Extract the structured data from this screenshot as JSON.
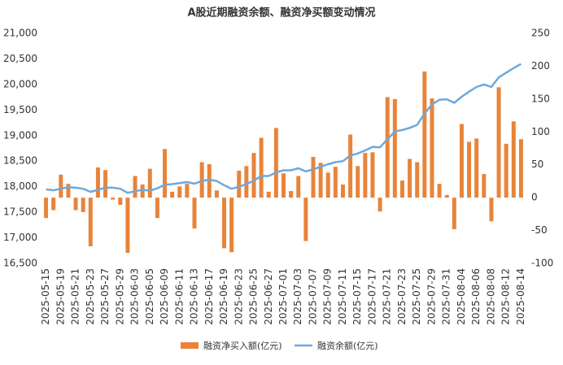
{
  "chart_data": {
    "type": "bar-line",
    "title": "A股近期融资余额、融资净买额变动情况",
    "categories": [
      "2025-05-15",
      null,
      "2025-05-19",
      null,
      "2025-05-21",
      null,
      "2025-05-23",
      null,
      "2025-05-27",
      null,
      "2025-05-29",
      null,
      "2025-06-03",
      null,
      "2025-06-05",
      null,
      "2025-06-09",
      null,
      "2025-06-11",
      null,
      "2025-06-13",
      null,
      "2025-06-17",
      null,
      "2025-06-19",
      null,
      "2025-06-23",
      null,
      "2025-06-25",
      null,
      "2025-06-27",
      null,
      "2025-07-01",
      null,
      "2025-07-03",
      null,
      "2025-07-07",
      null,
      "2025-07-09",
      null,
      "2025-07-11",
      null,
      "2025-07-15",
      null,
      "2025-07-17",
      null,
      "2025-07-21",
      null,
      "2025-07-23",
      null,
      "2025-07-25",
      null,
      "2025-07-29",
      null,
      "2025-07-31",
      null,
      "2025-08-04",
      null,
      "2025-08-06",
      null,
      "2025-08-08",
      null,
      "2025-08-12",
      null,
      "2025-08-14"
    ],
    "series": [
      {
        "name": "融资净买入额(亿元)",
        "kind": "bar",
        "axis": "y2",
        "color": "#e8843a",
        "values": [
          -31,
          -19,
          35,
          21,
          -19,
          -22,
          -74,
          46,
          42,
          -3,
          -11,
          -84,
          33,
          20,
          44,
          -31,
          74,
          9,
          17,
          21,
          -47,
          54,
          51,
          11,
          -77,
          -83,
          41,
          48,
          68,
          91,
          9,
          106,
          37,
          10,
          33,
          -66,
          62,
          53,
          38,
          47,
          20,
          96,
          48,
          68,
          69,
          -21,
          153,
          150,
          26,
          59,
          54,
          192,
          151,
          21,
          4,
          -48,
          112,
          85,
          90,
          36,
          -36,
          168,
          82,
          116,
          89
        ]
      },
      {
        "name": "融资余额(亿元)",
        "kind": "line",
        "color": "#6fa8dc",
        "values": [
          17950,
          17930,
          17960,
          17990,
          17980,
          17960,
          17900,
          17940,
          17980,
          17980,
          17960,
          17880,
          17910,
          17940,
          17920,
          17970,
          18040,
          18050,
          18070,
          18090,
          18060,
          18110,
          18140,
          18110,
          18030,
          17960,
          18000,
          18050,
          18120,
          18210,
          18210,
          18280,
          18320,
          18320,
          18360,
          18300,
          18340,
          18390,
          18440,
          18480,
          18500,
          18610,
          18650,
          18710,
          18780,
          18770,
          18930,
          19080,
          19110,
          19150,
          19210,
          19430,
          19610,
          19700,
          19710,
          19640,
          19760,
          19860,
          19950,
          20000,
          19950,
          20140,
          20230,
          20320,
          20400
        ]
      }
    ],
    "ylim": [
      16500,
      21000
    ],
    "yticks": [
      {
        "value": 16500,
        "label": "16,500"
      },
      {
        "value": 17000,
        "label": "17,000"
      },
      {
        "value": 17500,
        "label": "17,500"
      },
      {
        "value": 18000,
        "label": "18,000"
      },
      {
        "value": 18500,
        "label": "18,500"
      },
      {
        "value": 19000,
        "label": "19,000"
      },
      {
        "value": 19500,
        "label": "19,500"
      },
      {
        "value": 20000,
        "label": "20,000"
      },
      {
        "value": 20500,
        "label": "20,500"
      },
      {
        "value": 21000,
        "label": "21,000"
      }
    ],
    "y2lim": [
      -100,
      250
    ],
    "y2ticks": [
      -100,
      -50,
      0,
      50,
      100,
      150,
      200,
      250
    ],
    "legend": "bottom"
  }
}
